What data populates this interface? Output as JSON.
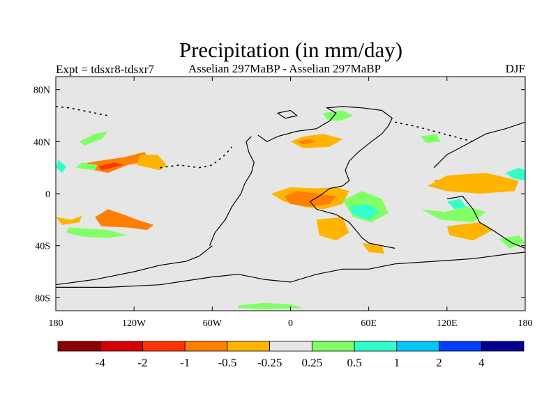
{
  "title": "Precipitation (in mm/day)",
  "subtitle_left": "Expt = tdsxr8-tdsxr7",
  "subtitle_center": "Asselian 297MaBP - Asselian 297MaBP",
  "subtitle_right": "DJF",
  "map": {
    "projection": "equirectangular",
    "background_color": "#e6e6e6",
    "lon_range": [
      -180,
      180
    ],
    "lat_range": [
      -90,
      90
    ],
    "x_ticks": [
      {
        "lon": -180,
        "label": "180"
      },
      {
        "lon": -120,
        "label": "120W"
      },
      {
        "lon": -60,
        "label": "60W"
      },
      {
        "lon": 0,
        "label": "0"
      },
      {
        "lon": 60,
        "label": "60E"
      },
      {
        "lon": 120,
        "label": "120E"
      },
      {
        "lon": 180,
        "label": "180"
      }
    ],
    "y_ticks": [
      {
        "lat": 80,
        "label": "80N"
      },
      {
        "lat": 40,
        "label": "40N"
      },
      {
        "lat": 0,
        "label": "0"
      },
      {
        "lat": -40,
        "label": "40S"
      },
      {
        "lat": -80,
        "label": "80S"
      }
    ]
  },
  "colorbar": {
    "colors": [
      "#8b0000",
      "#d40000",
      "#ff3300",
      "#ff7f00",
      "#ffb400",
      "#e6e6e6",
      "#80ff66",
      "#33ffcc",
      "#00c8ff",
      "#0040ff",
      "#000090"
    ],
    "labels": [
      "-4",
      "-2",
      "-1",
      "-0.5",
      "-0.25",
      "0.25",
      "0.5",
      "1",
      "2",
      "4"
    ]
  },
  "anomalies": [
    {
      "name": "pacific-n-band-west",
      "color": "#ff7f00",
      "pts": [
        [
          -160,
          20
        ],
        [
          -140,
          16
        ],
        [
          -125,
          22
        ],
        [
          -115,
          24
        ],
        [
          -108,
          26
        ],
        [
          -112,
          32
        ],
        [
          -128,
          28
        ],
        [
          -148,
          25
        ],
        [
          -160,
          23
        ]
      ]
    },
    {
      "name": "pacific-n-band-west-core",
      "color": "#ff3300",
      "pts": [
        [
          -145,
          18
        ],
        [
          -128,
          22
        ],
        [
          -135,
          24
        ],
        [
          -147,
          21
        ]
      ]
    },
    {
      "name": "pacific-n-band-east",
      "color": "#ffb400",
      "pts": [
        [
          -118,
          22
        ],
        [
          -100,
          18
        ],
        [
          -95,
          22
        ],
        [
          -102,
          30
        ],
        [
          -115,
          30
        ]
      ]
    },
    {
      "name": "pacific-n-green",
      "color": "#80ff66",
      "pts": [
        [
          -165,
          20
        ],
        [
          -150,
          18
        ],
        [
          -148,
          22
        ],
        [
          -160,
          24
        ]
      ]
    },
    {
      "name": "pacific-green-top",
      "color": "#80ff66",
      "pts": [
        [
          -162,
          40
        ],
        [
          -150,
          46
        ],
        [
          -140,
          48
        ],
        [
          -145,
          42
        ],
        [
          -158,
          37
        ]
      ]
    },
    {
      "name": "pacific-green-west",
      "color": "#33ffcc",
      "pts": [
        [
          -180,
          20
        ],
        [
          -175,
          16
        ],
        [
          -172,
          21
        ],
        [
          -178,
          26
        ]
      ]
    },
    {
      "name": "pacific-s-band-left",
      "color": "#ffb400",
      "pts": [
        [
          -180,
          -18
        ],
        [
          -168,
          -20
        ],
        [
          -160,
          -17
        ],
        [
          -162,
          -22
        ],
        [
          -175,
          -24
        ]
      ]
    },
    {
      "name": "pacific-s-band-core",
      "color": "#ff7f00",
      "pts": [
        [
          -150,
          -18
        ],
        [
          -140,
          -12
        ],
        [
          -128,
          -16
        ],
        [
          -118,
          -20
        ],
        [
          -105,
          -24
        ],
        [
          -110,
          -28
        ],
        [
          -125,
          -26
        ],
        [
          -145,
          -25
        ]
      ]
    },
    {
      "name": "pacific-s-green",
      "color": "#80ff66",
      "pts": [
        [
          -170,
          -26
        ],
        [
          -155,
          -27
        ],
        [
          -140,
          -28
        ],
        [
          -125,
          -32
        ],
        [
          -140,
          -34
        ],
        [
          -160,
          -33
        ],
        [
          -172,
          -30
        ]
      ]
    },
    {
      "name": "tethys-n-orange",
      "color": "#ffb400",
      "pts": [
        [
          0,
          40
        ],
        [
          10,
          44
        ],
        [
          25,
          46
        ],
        [
          40,
          42
        ],
        [
          30,
          36
        ],
        [
          10,
          35
        ]
      ]
    },
    {
      "name": "tethys-n-core",
      "color": "#ff7f00",
      "pts": [
        [
          5,
          40
        ],
        [
          15,
          42
        ],
        [
          20,
          40
        ],
        [
          10,
          38
        ]
      ]
    },
    {
      "name": "tropical-orange-main",
      "color": "#ffb400",
      "pts": [
        [
          -15,
          0
        ],
        [
          0,
          5
        ],
        [
          20,
          4
        ],
        [
          35,
          5
        ],
        [
          45,
          2
        ],
        [
          40,
          -8
        ],
        [
          25,
          -12
        ],
        [
          10,
          -10
        ],
        [
          -5,
          -6
        ]
      ]
    },
    {
      "name": "tropical-red-core",
      "color": "#ff7f00",
      "pts": [
        [
          -5,
          -2
        ],
        [
          5,
          2
        ],
        [
          20,
          0
        ],
        [
          35,
          -2
        ],
        [
          30,
          -8
        ],
        [
          15,
          -10
        ],
        [
          0,
          -8
        ]
      ]
    },
    {
      "name": "africa-green",
      "color": "#80ff66",
      "pts": [
        [
          40,
          -5
        ],
        [
          55,
          2
        ],
        [
          70,
          -4
        ],
        [
          75,
          -15
        ],
        [
          62,
          -22
        ],
        [
          48,
          -18
        ]
      ]
    },
    {
      "name": "africa-cyan",
      "color": "#33ffcc",
      "pts": [
        [
          45,
          -10
        ],
        [
          60,
          -8
        ],
        [
          68,
          -14
        ],
        [
          60,
          -20
        ],
        [
          48,
          -16
        ]
      ]
    },
    {
      "name": "africa-orange-south",
      "color": "#ffb400",
      "pts": [
        [
          20,
          -20
        ],
        [
          40,
          -18
        ],
        [
          45,
          -30
        ],
        [
          35,
          -36
        ],
        [
          22,
          -32
        ]
      ]
    },
    {
      "name": "east-tethys-red",
      "color": "#ff3300",
      "pts": [
        [
          110,
          10
        ],
        [
          130,
          12
        ],
        [
          150,
          14
        ],
        [
          170,
          10
        ],
        [
          160,
          4
        ],
        [
          140,
          4
        ],
        [
          120,
          6
        ]
      ]
    },
    {
      "name": "east-tethys-orange",
      "color": "#ffb400",
      "pts": [
        [
          105,
          6
        ],
        [
          120,
          2
        ],
        [
          145,
          0
        ],
        [
          172,
          2
        ],
        [
          175,
          10
        ],
        [
          150,
          16
        ],
        [
          120,
          14
        ]
      ]
    },
    {
      "name": "east-green",
      "color": "#80ff66",
      "pts": [
        [
          100,
          -12
        ],
        [
          118,
          -14
        ],
        [
          135,
          -10
        ],
        [
          150,
          -14
        ],
        [
          140,
          -22
        ],
        [
          115,
          -20
        ]
      ]
    },
    {
      "name": "east-cyan",
      "color": "#33ffcc",
      "pts": [
        [
          165,
          16
        ],
        [
          175,
          20
        ],
        [
          180,
          18
        ],
        [
          180,
          10
        ],
        [
          170,
          12
        ]
      ]
    },
    {
      "name": "east-cyan2",
      "color": "#33ffcc",
      "pts": [
        [
          120,
          -6
        ],
        [
          130,
          -4
        ],
        [
          135,
          -10
        ],
        [
          126,
          -12
        ]
      ]
    },
    {
      "name": "south-orange-blob",
      "color": "#ffb400",
      "pts": [
        [
          120,
          -25
        ],
        [
          145,
          -22
        ],
        [
          155,
          -28
        ],
        [
          140,
          -36
        ],
        [
          122,
          -32
        ]
      ]
    },
    {
      "name": "south-green-lower",
      "color": "#80ff66",
      "pts": [
        [
          160,
          -35
        ],
        [
          175,
          -32
        ],
        [
          180,
          -38
        ],
        [
          168,
          -42
        ]
      ]
    },
    {
      "name": "north-asia-green",
      "color": "#80ff66",
      "pts": [
        [
          25,
          62
        ],
        [
          40,
          64
        ],
        [
          48,
          60
        ],
        [
          38,
          56
        ],
        [
          28,
          57
        ]
      ]
    },
    {
      "name": "north-green-small",
      "color": "#80ff66",
      "pts": [
        [
          100,
          44
        ],
        [
          112,
          46
        ],
        [
          115,
          40
        ],
        [
          104,
          39
        ]
      ]
    },
    {
      "name": "antarctic-green",
      "color": "#80ff66",
      "pts": [
        [
          -40,
          -86
        ],
        [
          -20,
          -84
        ],
        [
          0,
          -85
        ],
        [
          10,
          -88
        ],
        [
          -20,
          -89
        ],
        [
          -40,
          -88
        ]
      ]
    },
    {
      "name": "orange-south-small",
      "color": "#ffb400",
      "pts": [
        [
          55,
          -38
        ],
        [
          70,
          -40
        ],
        [
          72,
          -46
        ],
        [
          60,
          -45
        ]
      ]
    }
  ],
  "coastlines": [
    {
      "name": "pangaea-west-coast",
      "pts": [
        [
          -62,
          -40
        ],
        [
          -58,
          -30
        ],
        [
          -50,
          -20
        ],
        [
          -45,
          -10
        ],
        [
          -38,
          0
        ],
        [
          -35,
          8
        ],
        [
          -30,
          16
        ],
        [
          -28,
          24
        ],
        [
          -32,
          32
        ],
        [
          -34,
          40
        ],
        [
          -30,
          44
        ]
      ]
    },
    {
      "name": "pangaea-north-coast",
      "pts": [
        [
          -25,
          45
        ],
        [
          -18,
          40
        ],
        [
          -10,
          44
        ],
        [
          5,
          48
        ],
        [
          20,
          50
        ],
        [
          30,
          56
        ],
        [
          35,
          62
        ],
        [
          28,
          66
        ],
        [
          40,
          67
        ],
        [
          55,
          66
        ],
        [
          70,
          64
        ],
        [
          78,
          58
        ],
        [
          75,
          52
        ],
        [
          70,
          46
        ],
        [
          62,
          40
        ],
        [
          52,
          32
        ],
        [
          45,
          25
        ],
        [
          42,
          18
        ],
        [
          45,
          10
        ],
        [
          40,
          6
        ],
        [
          30,
          4
        ],
        [
          22,
          -2
        ]
      ]
    },
    {
      "name": "tethys-south-coast",
      "pts": [
        [
          22,
          -2
        ],
        [
          15,
          -6
        ],
        [
          20,
          -12
        ],
        [
          35,
          -16
        ],
        [
          45,
          -22
        ],
        [
          50,
          -28
        ],
        [
          55,
          -34
        ],
        [
          60,
          -38
        ],
        [
          70,
          -40
        ],
        [
          80,
          -42
        ]
      ]
    },
    {
      "name": "gondwana-coast-south",
      "pts": [
        [
          -60,
          -40
        ],
        [
          -70,
          -48
        ],
        [
          -80,
          -52
        ],
        [
          -100,
          -55
        ],
        [
          -120,
          -60
        ],
        [
          -150,
          -66
        ],
        [
          -180,
          -70
        ]
      ]
    },
    {
      "name": "antarctic-shelf",
      "pts": [
        [
          -180,
          -72
        ],
        [
          -140,
          -72
        ],
        [
          -100,
          -70
        ],
        [
          -60,
          -64
        ],
        [
          -40,
          -62
        ],
        [
          -20,
          -66
        ],
        [
          0,
          -68
        ],
        [
          20,
          -62
        ],
        [
          40,
          -58
        ],
        [
          60,
          -58
        ],
        [
          80,
          -54
        ],
        [
          110,
          -52
        ],
        [
          140,
          -50
        ],
        [
          170,
          -46
        ],
        [
          180,
          -45
        ]
      ]
    },
    {
      "name": "east-asia-block-north",
      "pts": [
        [
          110,
          20
        ],
        [
          120,
          30
        ],
        [
          135,
          38
        ],
        [
          150,
          46
        ],
        [
          165,
          50
        ],
        [
          180,
          55
        ]
      ]
    },
    {
      "name": "east-asia-block-south",
      "pts": [
        [
          120,
          -4
        ],
        [
          132,
          -2
        ],
        [
          140,
          -12
        ],
        [
          145,
          -22
        ],
        [
          155,
          -28
        ],
        [
          170,
          -38
        ],
        [
          180,
          -42
        ]
      ]
    },
    {
      "name": "arctic-island",
      "pts": [
        [
          -10,
          62
        ],
        [
          0,
          64
        ],
        [
          5,
          60
        ],
        [
          -4,
          58
        ],
        [
          -10,
          62
        ]
      ]
    }
  ],
  "dotted_boundaries": [
    {
      "name": "paleo-trench-pacific",
      "pts": [
        [
          -100,
          20
        ],
        [
          -85,
          22
        ],
        [
          -70,
          20
        ],
        [
          -60,
          22
        ],
        [
          -50,
          30
        ],
        [
          -45,
          36
        ]
      ]
    },
    {
      "name": "paleo-coast-north",
      "pts": [
        [
          -180,
          67
        ],
        [
          -170,
          66
        ],
        [
          -155,
          63
        ],
        [
          -140,
          60
        ]
      ]
    },
    {
      "name": "paleo-coast-east",
      "pts": [
        [
          80,
          55
        ],
        [
          95,
          52
        ],
        [
          110,
          48
        ],
        [
          125,
          44
        ],
        [
          140,
          40
        ]
      ]
    }
  ]
}
